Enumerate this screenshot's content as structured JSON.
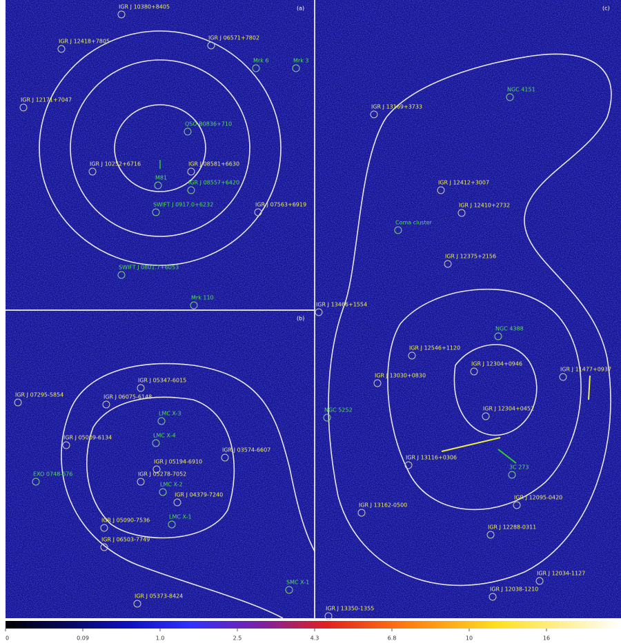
{
  "panels": [
    {
      "label": "(a)",
      "sources": [
        {
          "name": "IGR J 10380+8405"
        },
        {
          "name": "IGR J 12418+7805"
        },
        {
          "name": "IGR J 06571+7802"
        },
        {
          "name": "Mrk 6"
        },
        {
          "name": "Mrk 3"
        },
        {
          "name": "IGR J 12171+7047"
        },
        {
          "name": "QSO B0836+710"
        },
        {
          "name": "IGR J 10252+6716"
        },
        {
          "name": "IGR J 08581+6630"
        },
        {
          "name": "M81"
        },
        {
          "name": "IGR J 08557+6420"
        },
        {
          "name": "SWIFT J 0917.0+6232"
        },
        {
          "name": "IGR J 07563+6919"
        },
        {
          "name": "SWIFT J 0801.7+6053"
        },
        {
          "name": "Mrk 110"
        }
      ]
    },
    {
      "label": "(b)",
      "sources": [
        {
          "name": "IGR J 05347-6015"
        },
        {
          "name": "IGR J 07295-5854"
        },
        {
          "name": "IGR J 06075-6148"
        },
        {
          "name": "LMC X-3"
        },
        {
          "name": "LMC X-4"
        },
        {
          "name": "IGR J 05009-6134"
        },
        {
          "name": "IGR J 03574-6607"
        },
        {
          "name": "IGR J 05194-6910"
        },
        {
          "name": "IGR J 05278-7052"
        },
        {
          "name": "LMC X-2"
        },
        {
          "name": "EXO 0748-676"
        },
        {
          "name": "IGR J 04379-7240"
        },
        {
          "name": "IGR J 05090-7536"
        },
        {
          "name": "LMC X-1"
        },
        {
          "name": "IGR J 06503-7749"
        },
        {
          "name": "IGR J 05373-8424"
        },
        {
          "name": "SMC X-1"
        }
      ]
    },
    {
      "label": "(c)",
      "sources": [
        {
          "name": "NGC 4151"
        },
        {
          "name": "IGR J 13169+3733"
        },
        {
          "name": "IGR J 12412+3007"
        },
        {
          "name": "IGR J 12410+2732"
        },
        {
          "name": "Coma cluster"
        },
        {
          "name": "IGR J 12375+2156"
        },
        {
          "name": "IGR J 13466+1554"
        },
        {
          "name": "NGC 4388"
        },
        {
          "name": "IGR J 12546+1120"
        },
        {
          "name": "IGR J 12304+0946"
        },
        {
          "name": "IGR J 11477+0937"
        },
        {
          "name": "IGR J 13030+0830"
        },
        {
          "name": "NGC 5252"
        },
        {
          "name": "IGR J 12304+0452"
        },
        {
          "name": "IGR J 13116+0306"
        },
        {
          "name": "3C 273"
        },
        {
          "name": "IGR J 13162-0500"
        },
        {
          "name": "IGR J 12095-0420"
        },
        {
          "name": "IGR J 12288-0311"
        },
        {
          "name": "IGR J 12034-1127"
        },
        {
          "name": "IGR J 12038-1210"
        },
        {
          "name": "IGR J 13350-1355"
        }
      ]
    }
  ],
  "colorbar": {
    "ticks": [
      "0",
      "0.09",
      "1.0",
      "2.5",
      "4.3",
      "6.8",
      "10",
      "16"
    ]
  }
}
